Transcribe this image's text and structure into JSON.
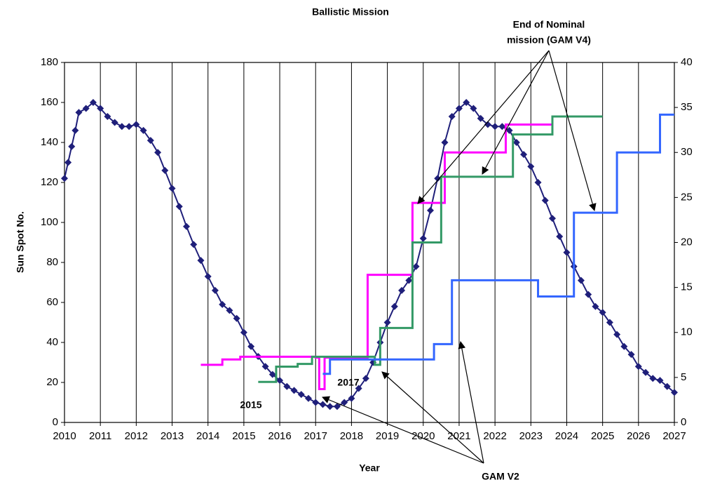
{
  "chart_data": {
    "type": "line",
    "title": "Ballistic Mission",
    "x_label": "Year",
    "y_label": "Sun Spot No.",
    "xlim": [
      2010,
      2027
    ],
    "xticks": [
      2010,
      2011,
      2012,
      2013,
      2014,
      2015,
      2016,
      2017,
      2018,
      2019,
      2020,
      2021,
      2022,
      2023,
      2024,
      2025,
      2026,
      2027
    ],
    "ylim": [
      0,
      180
    ],
    "yticks": [
      0,
      20,
      40,
      60,
      80,
      100,
      120,
      140,
      160,
      180
    ],
    "y2lim": [
      0,
      40
    ],
    "y2ticks": [
      0,
      5,
      10,
      15,
      20,
      25,
      30,
      35,
      40
    ],
    "grid": true,
    "series": [
      {
        "type": "line",
        "color": "#1f1f7a",
        "x": [
          2010.0,
          2010.1,
          2010.2,
          2010.3,
          2010.4,
          2010.6,
          2010.8,
          2011.0,
          2011.2,
          2011.4,
          2011.6,
          2011.8,
          2012.0,
          2012.2,
          2012.4,
          2012.6,
          2012.8,
          2013.0,
          2013.2,
          2013.4,
          2013.6,
          2013.8,
          2014.0,
          2014.2,
          2014.4,
          2014.6,
          2014.8,
          2015.0,
          2015.2,
          2015.4,
          2015.6,
          2015.8,
          2016.0,
          2016.2,
          2016.4,
          2016.6,
          2016.8,
          2017.0,
          2017.2,
          2017.4,
          2017.6,
          2017.8,
          2018.0,
          2018.2,
          2018.4,
          2018.6,
          2018.8,
          2019.0,
          2019.2,
          2019.4,
          2019.6,
          2019.8,
          2020.0,
          2020.2,
          2020.4,
          2020.6,
          2020.8,
          2021.0,
          2021.2,
          2021.4,
          2021.6,
          2021.8,
          2022.0,
          2022.2,
          2022.4,
          2022.6,
          2022.8,
          2023.0,
          2023.2,
          2023.4,
          2023.6,
          2023.8,
          2024.0,
          2024.2,
          2024.4,
          2024.6,
          2024.8,
          2025.0,
          2025.2,
          2025.4,
          2025.6,
          2025.8,
          2026.0,
          2026.2,
          2026.4,
          2026.6,
          2026.8,
          2027.0
        ],
        "values": [
          122,
          130,
          138,
          146,
          155,
          157,
          160,
          157,
          153,
          150,
          148,
          148,
          149,
          146,
          141,
          135,
          126,
          117,
          108,
          98,
          89,
          81,
          73,
          66,
          59,
          56,
          52,
          45,
          38,
          33,
          28,
          24,
          21,
          18,
          16,
          14,
          12,
          10,
          9,
          8,
          8,
          10,
          12,
          17,
          22,
          30,
          40,
          50,
          58,
          66,
          71,
          78,
          92,
          106,
          122,
          140,
          153,
          157,
          160,
          157,
          152,
          149,
          148,
          148,
          146,
          140,
          134,
          128,
          120,
          111,
          102,
          93,
          85,
          78,
          71,
          64,
          58,
          55,
          50,
          44,
          38,
          34,
          28,
          25,
          22,
          21,
          18,
          15
        ]
      },
      {
        "type": "step",
        "axis": "y2",
        "color": "#ff00ff",
        "x": [
          2013.8,
          2014.4,
          2014.9,
          2017.0,
          2017.1,
          2017.25,
          2018.45,
          2019.7,
          2020.6,
          2022.3,
          2023.6,
          2024.8
        ],
        "values": [
          6.4,
          7.0,
          7.3,
          7.2,
          3.7,
          7.2,
          16.4,
          24.4,
          30,
          33.1,
          34,
          34
        ]
      },
      {
        "type": "step",
        "axis": "y2",
        "color": "#339966",
        "x": [
          2015.4,
          2015.9,
          2016.5,
          2016.9,
          2018.65,
          2018.8,
          2019.7,
          2020.5,
          2022.5,
          2023.6,
          2025.0
        ],
        "values": [
          4.5,
          6.2,
          6.5,
          7.3,
          6.4,
          10.5,
          20,
          27.3,
          32,
          34,
          34
        ]
      },
      {
        "type": "step",
        "axis": "y2",
        "color": "#3366ff",
        "x": [
          2017.2,
          2017.4,
          2020.3,
          2020.8,
          2023.2,
          2024.2,
          2025.4,
          2026.6,
          2027.0
        ],
        "values": [
          5.4,
          7.0,
          8.7,
          15.8,
          14,
          23.3,
          30,
          34.2,
          34.2
        ]
      }
    ],
    "annotations": [
      "End of Nominal",
      "mission (GAM V4)",
      "GAM V2",
      "2015",
      "2017"
    ]
  }
}
